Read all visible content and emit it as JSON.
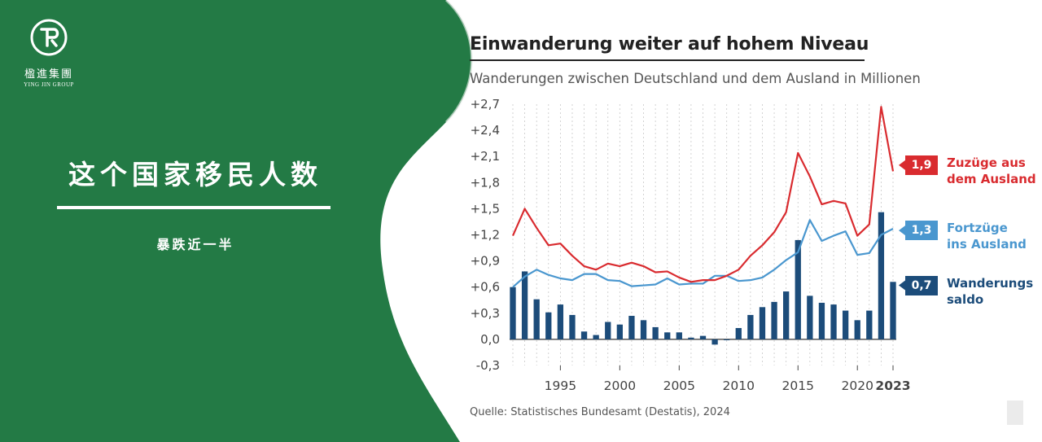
{
  "brand": {
    "name": "楹進集團",
    "sub": "YING JIN GROUP",
    "logo_icon": "circular-logo-icon"
  },
  "headline": {
    "title": "这个国家移民人数",
    "subtitle": "暴跌近一半"
  },
  "colors": {
    "green": "#237a45",
    "red": "#d92b2f",
    "light_blue": "#4a97cf",
    "dark_blue": "#1c4c7a"
  },
  "chart_data": {
    "type": "bar+line",
    "title": "Einwanderung weiter auf hohem Niveau",
    "subtitle": "Wanderungen zwischen Deutschland und dem Ausland in Millionen",
    "source": "Quelle: Statistisches Bundesamt (Destatis), 2024",
    "ylim": [
      -0.3,
      2.7
    ],
    "yticks": [
      -0.3,
      0.0,
      0.3,
      0.6,
      0.9,
      1.2,
      1.5,
      1.8,
      2.1,
      2.4,
      2.7
    ],
    "ytick_labels": [
      "-0,3",
      "0,0",
      "+0,3",
      "+0,6",
      "+0,9",
      "+1,2",
      "+1,5",
      "+1,8",
      "+2,1",
      "+2,4",
      "+2,7"
    ],
    "xlim": [
      1991,
      2023
    ],
    "xticks": [
      1995,
      2000,
      2005,
      2010,
      2015,
      2020,
      2023
    ],
    "xtick_labels": [
      "1995",
      "2000",
      "2005",
      "2010",
      "2015",
      "2020",
      "2023"
    ],
    "grid": "vertical dashed at each year",
    "x": [
      1991,
      1992,
      1993,
      1994,
      1995,
      1996,
      1997,
      1998,
      1999,
      2000,
      2001,
      2002,
      2003,
      2004,
      2005,
      2006,
      2007,
      2008,
      2009,
      2010,
      2011,
      2012,
      2013,
      2014,
      2015,
      2016,
      2017,
      2018,
      2019,
      2020,
      2021,
      2022,
      2023
    ],
    "series": [
      {
        "name": "Zuzüge aus dem Ausland",
        "kind": "line",
        "color": "#d92b2f",
        "end_label": "1,9",
        "values": [
          1.19,
          1.5,
          1.28,
          1.08,
          1.1,
          0.96,
          0.84,
          0.8,
          0.87,
          0.84,
          0.88,
          0.84,
          0.77,
          0.78,
          0.71,
          0.66,
          0.68,
          0.68,
          0.73,
          0.8,
          0.96,
          1.08,
          1.23,
          1.46,
          2.14,
          1.87,
          1.55,
          1.59,
          1.56,
          1.19,
          1.32,
          2.67,
          1.93
        ]
      },
      {
        "name": "Fortzüge ins Ausland",
        "kind": "line",
        "color": "#4a97cf",
        "end_label": "1,3",
        "values": [
          0.6,
          0.72,
          0.8,
          0.74,
          0.7,
          0.68,
          0.75,
          0.75,
          0.68,
          0.67,
          0.61,
          0.62,
          0.63,
          0.7,
          0.63,
          0.64,
          0.64,
          0.73,
          0.73,
          0.67,
          0.68,
          0.71,
          0.8,
          0.91,
          1.0,
          1.37,
          1.13,
          1.19,
          1.24,
          0.97,
          0.99,
          1.2,
          1.27
        ]
      },
      {
        "name": "Wanderungssaldo",
        "kind": "bar",
        "color": "#1c4c7a",
        "end_label": "0,7",
        "values": [
          0.6,
          0.78,
          0.46,
          0.31,
          0.4,
          0.28,
          0.09,
          0.05,
          0.2,
          0.17,
          0.27,
          0.22,
          0.14,
          0.08,
          0.08,
          0.02,
          0.04,
          -0.06,
          -0.01,
          0.13,
          0.28,
          0.37,
          0.43,
          0.55,
          1.14,
          0.5,
          0.42,
          0.4,
          0.33,
          0.22,
          0.33,
          1.46,
          0.66
        ]
      }
    ],
    "legend": "right, at line ends",
    "legend_labels": {
      "zuzuege": [
        "Zuzüge aus",
        "dem Ausland"
      ],
      "fortzuege": [
        "Fortzüge",
        "ins Ausland"
      ],
      "saldo": [
        "Wanderungs",
        "saldo"
      ]
    }
  }
}
